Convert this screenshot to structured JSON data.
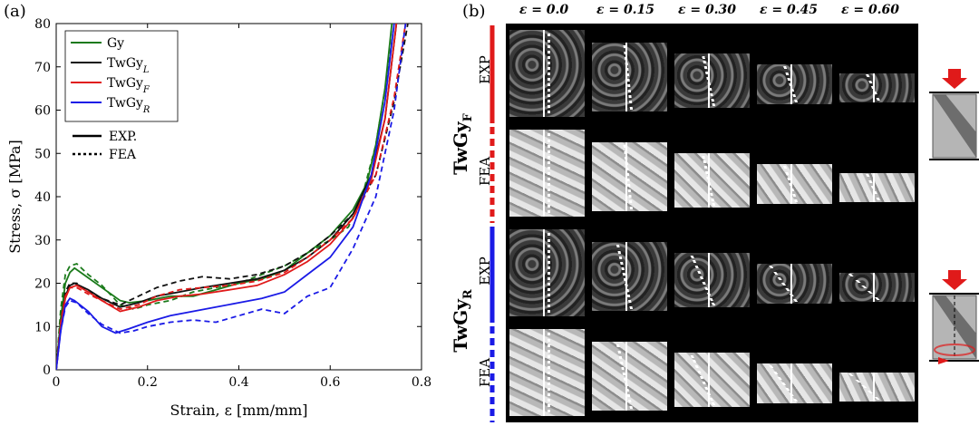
{
  "panel_a_label": "(a)",
  "panel_b_label": "(b)",
  "chart_data": {
    "type": "line",
    "xlabel": "Strain, ε [mm/mm]",
    "ylabel": "Stress, σ [MPa]",
    "xlim": [
      0,
      0.8
    ],
    "ylim": [
      0,
      80
    ],
    "x_ticks": [
      "0",
      "0.2",
      "0.4",
      "0.6",
      "0.8"
    ],
    "y_ticks": [
      "0",
      "10",
      "20",
      "30",
      "40",
      "50",
      "60",
      "70",
      "80"
    ],
    "grid": false,
    "legend_position": "top-left",
    "style_legend": [
      {
        "label": "EXP.",
        "dash": "solid"
      },
      {
        "label": "FEA",
        "dash": "dotted"
      }
    ],
    "series": [
      {
        "name": "Gy",
        "color": "#1a7a1a",
        "exp": [
          [
            0,
            0
          ],
          [
            0.01,
            12
          ],
          [
            0.02,
            20
          ],
          [
            0.03,
            22.5
          ],
          [
            0.04,
            23.5
          ],
          [
            0.06,
            22
          ],
          [
            0.1,
            19
          ],
          [
            0.14,
            16
          ],
          [
            0.16,
            15.5
          ],
          [
            0.2,
            16
          ],
          [
            0.25,
            17
          ],
          [
            0.3,
            17
          ],
          [
            0.35,
            18.5
          ],
          [
            0.4,
            20
          ],
          [
            0.45,
            21
          ],
          [
            0.5,
            23
          ],
          [
            0.55,
            27
          ],
          [
            0.6,
            31
          ],
          [
            0.65,
            37
          ],
          [
            0.68,
            43
          ],
          [
            0.7,
            52
          ],
          [
            0.72,
            65
          ],
          [
            0.735,
            80
          ]
        ],
        "fea": [
          [
            0,
            0
          ],
          [
            0.01,
            14
          ],
          [
            0.02,
            22
          ],
          [
            0.03,
            24
          ],
          [
            0.045,
            24.5
          ],
          [
            0.07,
            22
          ],
          [
            0.1,
            19.5
          ],
          [
            0.14,
            15
          ],
          [
            0.17,
            14
          ],
          [
            0.2,
            15
          ],
          [
            0.25,
            16
          ],
          [
            0.3,
            18
          ],
          [
            0.35,
            19
          ],
          [
            0.4,
            20
          ],
          [
            0.45,
            22
          ],
          [
            0.5,
            24
          ],
          [
            0.55,
            27
          ],
          [
            0.6,
            30
          ],
          [
            0.64,
            33
          ],
          [
            0.67,
            40
          ],
          [
            0.7,
            52
          ],
          [
            0.725,
            68
          ],
          [
            0.74,
            80
          ]
        ]
      },
      {
        "name": "TwGyL",
        "color": "#111111",
        "exp": [
          [
            0,
            0
          ],
          [
            0.01,
            10
          ],
          [
            0.02,
            17
          ],
          [
            0.03,
            19.5
          ],
          [
            0.04,
            20
          ],
          [
            0.07,
            18.5
          ],
          [
            0.1,
            16.5
          ],
          [
            0.14,
            14.5
          ],
          [
            0.18,
            15.5
          ],
          [
            0.22,
            17
          ],
          [
            0.27,
            18
          ],
          [
            0.32,
            19
          ],
          [
            0.38,
            20
          ],
          [
            0.44,
            21
          ],
          [
            0.5,
            23
          ],
          [
            0.55,
            26
          ],
          [
            0.6,
            30
          ],
          [
            0.65,
            36
          ],
          [
            0.69,
            45
          ],
          [
            0.72,
            58
          ],
          [
            0.745,
            80
          ]
        ],
        "fea": [
          [
            0,
            0
          ],
          [
            0.01,
            11
          ],
          [
            0.02,
            18
          ],
          [
            0.03,
            20
          ],
          [
            0.045,
            20
          ],
          [
            0.07,
            18
          ],
          [
            0.1,
            16.5
          ],
          [
            0.14,
            15
          ],
          [
            0.18,
            17
          ],
          [
            0.22,
            19
          ],
          [
            0.27,
            20.5
          ],
          [
            0.32,
            21.5
          ],
          [
            0.38,
            21
          ],
          [
            0.44,
            22
          ],
          [
            0.5,
            24
          ],
          [
            0.55,
            27
          ],
          [
            0.6,
            31
          ],
          [
            0.65,
            36
          ],
          [
            0.7,
            45
          ],
          [
            0.74,
            62
          ],
          [
            0.77,
            80
          ]
        ]
      },
      {
        "name": "TwGyF",
        "color": "#e01a1a",
        "exp": [
          [
            0,
            0
          ],
          [
            0.01,
            10
          ],
          [
            0.02,
            16.5
          ],
          [
            0.03,
            19
          ],
          [
            0.045,
            19.5
          ],
          [
            0.07,
            18
          ],
          [
            0.1,
            16
          ],
          [
            0.14,
            13.5
          ],
          [
            0.18,
            14.5
          ],
          [
            0.22,
            16
          ],
          [
            0.27,
            17
          ],
          [
            0.32,
            17.5
          ],
          [
            0.38,
            18.5
          ],
          [
            0.44,
            19.5
          ],
          [
            0.5,
            22
          ],
          [
            0.55,
            25
          ],
          [
            0.6,
            29
          ],
          [
            0.65,
            35
          ],
          [
            0.69,
            44
          ],
          [
            0.72,
            58
          ],
          [
            0.745,
            80
          ]
        ],
        "fea": [
          [
            0,
            0
          ],
          [
            0.01,
            11
          ],
          [
            0.02,
            17
          ],
          [
            0.03,
            19
          ],
          [
            0.045,
            19
          ],
          [
            0.07,
            17.5
          ],
          [
            0.1,
            16
          ],
          [
            0.14,
            14
          ],
          [
            0.18,
            15
          ],
          [
            0.22,
            17
          ],
          [
            0.27,
            18.5
          ],
          [
            0.32,
            19
          ],
          [
            0.38,
            19.5
          ],
          [
            0.44,
            20.5
          ],
          [
            0.5,
            22.5
          ],
          [
            0.55,
            26
          ],
          [
            0.6,
            30
          ],
          [
            0.65,
            35
          ],
          [
            0.7,
            45
          ],
          [
            0.74,
            63
          ],
          [
            0.765,
            80
          ]
        ]
      },
      {
        "name": "TwGyR",
        "color": "#1a1ae6",
        "exp": [
          [
            0,
            0
          ],
          [
            0.01,
            9
          ],
          [
            0.02,
            15
          ],
          [
            0.03,
            16.5
          ],
          [
            0.04,
            16
          ],
          [
            0.07,
            13.5
          ],
          [
            0.1,
            10
          ],
          [
            0.13,
            8.5
          ],
          [
            0.16,
            9.5
          ],
          [
            0.2,
            11
          ],
          [
            0.25,
            12.5
          ],
          [
            0.3,
            13.5
          ],
          [
            0.35,
            14.5
          ],
          [
            0.4,
            15.5
          ],
          [
            0.45,
            16.5
          ],
          [
            0.5,
            18
          ],
          [
            0.55,
            22
          ],
          [
            0.6,
            26
          ],
          [
            0.65,
            33
          ],
          [
            0.69,
            45
          ],
          [
            0.72,
            62
          ],
          [
            0.74,
            80
          ]
        ],
        "fea": [
          [
            0,
            0
          ],
          [
            0.01,
            9
          ],
          [
            0.02,
            14.5
          ],
          [
            0.03,
            16
          ],
          [
            0.045,
            15.5
          ],
          [
            0.07,
            13
          ],
          [
            0.1,
            10.5
          ],
          [
            0.14,
            8.5
          ],
          [
            0.17,
            9
          ],
          [
            0.2,
            10
          ],
          [
            0.25,
            11
          ],
          [
            0.3,
            11.5
          ],
          [
            0.35,
            11
          ],
          [
            0.4,
            12.5
          ],
          [
            0.45,
            14
          ],
          [
            0.5,
            13
          ],
          [
            0.55,
            17
          ],
          [
            0.6,
            19
          ],
          [
            0.65,
            28
          ],
          [
            0.7,
            40
          ],
          [
            0.74,
            60
          ],
          [
            0.765,
            80
          ]
        ]
      }
    ]
  },
  "legend_labels": [
    "Gy",
    "TwGy",
    "TwGy",
    "TwGy"
  ],
  "legend_subs": [
    "",
    "L",
    "F",
    "R"
  ],
  "panel_b": {
    "strain_headers": [
      "ε = 0.0",
      "ε = 0.15",
      "ε = 0.30",
      "ε = 0.45",
      "ε = 0.60"
    ],
    "group_labels": [
      "TwGy",
      "TwGy"
    ],
    "group_subs": [
      "F",
      "R"
    ],
    "row_labels": [
      "EXP",
      "FEA",
      "EXP",
      "FEA"
    ],
    "group_bar_colors": [
      "#e01a1a",
      "#1a1ae6"
    ],
    "arrow_color": "#e01a1a",
    "exp_texture": "#7a7a7a",
    "fea_texture": "#b8b8b8"
  }
}
